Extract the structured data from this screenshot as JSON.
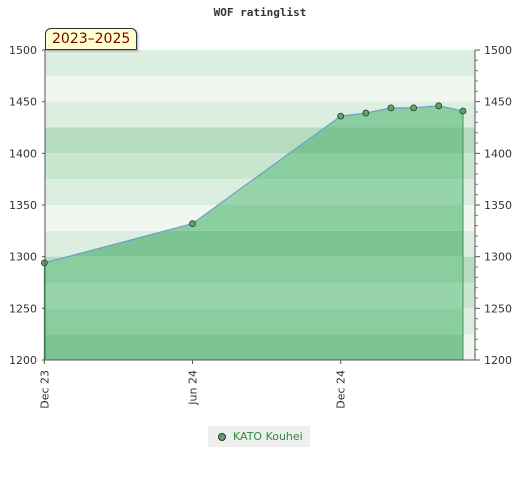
{
  "chart_data": {
    "type": "area",
    "title": "WOF ratinglist",
    "period_label": "2023–2025",
    "xlabel": "",
    "ylabel": "",
    "ylim": [
      1200,
      1500
    ],
    "y_ticks": [
      1200,
      1250,
      1300,
      1350,
      1400,
      1450,
      1500
    ],
    "x_ticks": [
      {
        "date": "2023-12-01",
        "label": "Dec 23"
      },
      {
        "date": "2024-06-01",
        "label": "Jun 24"
      },
      {
        "date": "2024-12-01",
        "label": "Dec 24"
      }
    ],
    "xlim": [
      "2023-11-17",
      "2025-05-01"
    ],
    "grid": true,
    "legend_position": "bottom-center",
    "series": [
      {
        "name": "KATO Kouhei",
        "color": "#5aa866",
        "line_color": "#6b9fd0",
        "points": [
          {
            "x": "2023-12-01",
            "y": 1294
          },
          {
            "x": "2024-06-01",
            "y": 1332
          },
          {
            "x": "2024-12-01",
            "y": 1436
          },
          {
            "x": "2025-01-01",
            "y": 1439
          },
          {
            "x": "2025-02-01",
            "y": 1444
          },
          {
            "x": "2025-03-01",
            "y": 1444
          },
          {
            "x": "2025-04-01",
            "y": 1446
          },
          {
            "x": "2025-05-01",
            "y": 1441
          }
        ]
      }
    ]
  }
}
